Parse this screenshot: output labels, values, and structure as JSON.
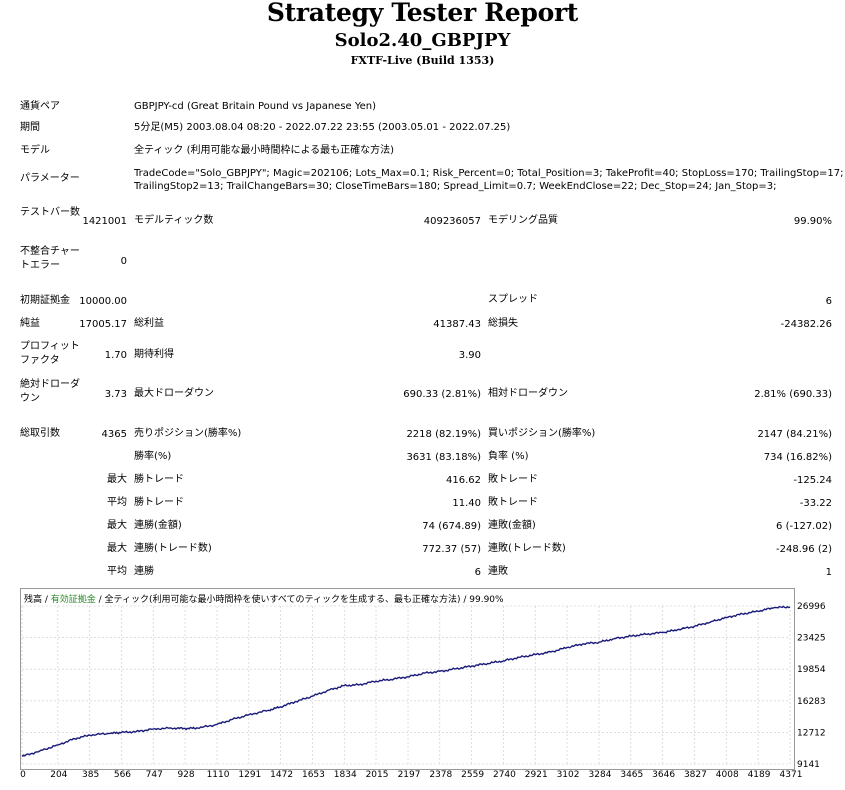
{
  "report": {
    "title": "Strategy Tester Report",
    "subtitle": "Solo2.40_GBPJPY",
    "build": "FXTF-Live (Build 1353)"
  },
  "info": {
    "symbol_label": "通貨ペア",
    "symbol_value": "GBPJPY-cd (Great Britain Pound vs Japanese Yen)",
    "period_label": "期間",
    "period_value": "5分足(M5) 2003.08.04 08:20 - 2022.07.22 23:55 (2003.05.01 - 2022.07.25)",
    "model_label": "モデル",
    "model_value": "全ティック (利用可能な最小時間枠による最も正確な方法)",
    "params_label": "パラメーター",
    "params_line1": "TradeCode=\"Solo_GBPJPY\"; Magic=202106; Lots_Max=0.1; Risk_Percent=0; Total_Position=3; TakeProfit=40; StopLoss=170; TrailingStop=17;",
    "params_line2": "TrailingStop2=13; TrailChangeBars=30; CloseTimeBars=180; Spread_Limit=0.7; WeekEndClose=22; Dec_Stop=24; Jan_Stop=3;"
  },
  "stats": {
    "bars_label": "テストバー数",
    "bars_value": "1421001",
    "ticks_label": "モデルティック数",
    "ticks_value": "409236057",
    "quality_label": "モデリング品質",
    "quality_value": "99.90%",
    "mismatch_label": "不整合チャートエラー",
    "mismatch_value": "0",
    "deposit_label": "初期証拠金",
    "deposit_value": "10000.00",
    "spread_label": "スプレッド",
    "spread_value": "6",
    "net_label": "純益",
    "net_value": "17005.17",
    "gross_profit_label": "総利益",
    "gross_profit_value": "41387.43",
    "gross_loss_label": "総損失",
    "gross_loss_value": "-24382.26",
    "pf_label": "プロフィットファクタ",
    "pf_value": "1.70",
    "expected_label": "期待利得",
    "expected_value": "3.90",
    "abs_dd_label": "絶対ドローダウン",
    "abs_dd_value": "3.73",
    "max_dd_label": "最大ドローダウン",
    "max_dd_value": "690.33 (2.81%)",
    "rel_dd_label": "相対ドローダウン",
    "rel_dd_value": "2.81% (690.33)",
    "trades_label": "総取引数",
    "trades_value": "4365",
    "short_label": "売りポジション(勝率%)",
    "short_value": "2218 (82.19%)",
    "long_label": "買いポジション(勝率%)",
    "long_value": "2147 (84.21%)",
    "win_label": "勝率(%)",
    "win_value": "3631 (83.18%)",
    "loss_label": "負率 (%)",
    "loss_value": "734 (16.82%)",
    "max_word": "最大",
    "avg_word": "平均",
    "max_win_label": "勝トレード",
    "max_win_value": "416.62",
    "max_loss_label": "敗トレード",
    "max_loss_value": "-125.24",
    "avg_win_label": "勝トレード",
    "avg_win_value": "11.40",
    "avg_loss_label": "敗トレード",
    "avg_loss_value": "-33.22",
    "cons_win_money_label": "連勝(金額)",
    "cons_win_money_value": "74 (674.89)",
    "cons_loss_money_label": "連敗(金額)",
    "cons_loss_money_value": "6 (-127.02)",
    "cons_win_trades_label": "連勝(トレード数)",
    "cons_win_trades_value": "772.37 (57)",
    "cons_loss_trades_label": "連敗(トレード数)",
    "cons_loss_trades_value": "-248.96 (2)",
    "avg_cons_win_label": "連勝",
    "avg_cons_win_value": "6",
    "avg_cons_loss_label": "連敗",
    "avg_cons_loss_value": "1"
  },
  "chart_legend": {
    "balance": "残高",
    "sep1": " / ",
    "equity": "有効証拠金",
    "sep2": " / 全ティック(利用可能な最小時間枠を使いすべてのティックを生成する、最も正確な方法) / ",
    "quality": "99.90%"
  },
  "colors": {
    "line": "#1a1a7a",
    "grid": "#c8c8c8",
    "equity_legend": "#2a8a2a"
  },
  "chart_data": {
    "type": "line",
    "title": "",
    "xlabel": "",
    "ylabel": "",
    "x_ticks": [
      0,
      204,
      385,
      566,
      747,
      928,
      1110,
      1291,
      1472,
      1653,
      1834,
      2015,
      2197,
      2378,
      2559,
      2740,
      2921,
      3102,
      3284,
      3465,
      3646,
      3827,
      4008,
      4189,
      4371
    ],
    "y_ticks": [
      9141,
      12712,
      16283,
      19854,
      23425,
      26996
    ],
    "xlim": [
      0,
      4371
    ],
    "ylim": [
      9141,
      26996
    ],
    "grid": true,
    "series": [
      {
        "name": "残高",
        "x": [
          0,
          100,
          204,
          300,
          385,
          500,
          566,
          650,
          747,
          850,
          928,
          1000,
          1110,
          1200,
          1291,
          1400,
          1472,
          1560,
          1653,
          1750,
          1834,
          1920,
          2015,
          2100,
          2197,
          2290,
          2378,
          2470,
          2559,
          2650,
          2740,
          2830,
          2921,
          3010,
          3102,
          3190,
          3284,
          3370,
          3465,
          3550,
          3646,
          3730,
          3827,
          3920,
          4008,
          4100,
          4189,
          4280,
          4371
        ],
        "values": [
          10000,
          10600,
          11300,
          12000,
          12400,
          12600,
          12700,
          12800,
          13100,
          13200,
          13150,
          13200,
          13600,
          14200,
          14700,
          15200,
          15600,
          16200,
          16800,
          17500,
          18000,
          18100,
          18500,
          18700,
          19000,
          19400,
          19600,
          19900,
          20200,
          20500,
          20800,
          21200,
          21500,
          21800,
          22300,
          22700,
          22900,
          23300,
          23600,
          23800,
          24000,
          24300,
          24700,
          25200,
          25700,
          26100,
          26400,
          26800,
          26900
        ]
      }
    ]
  }
}
